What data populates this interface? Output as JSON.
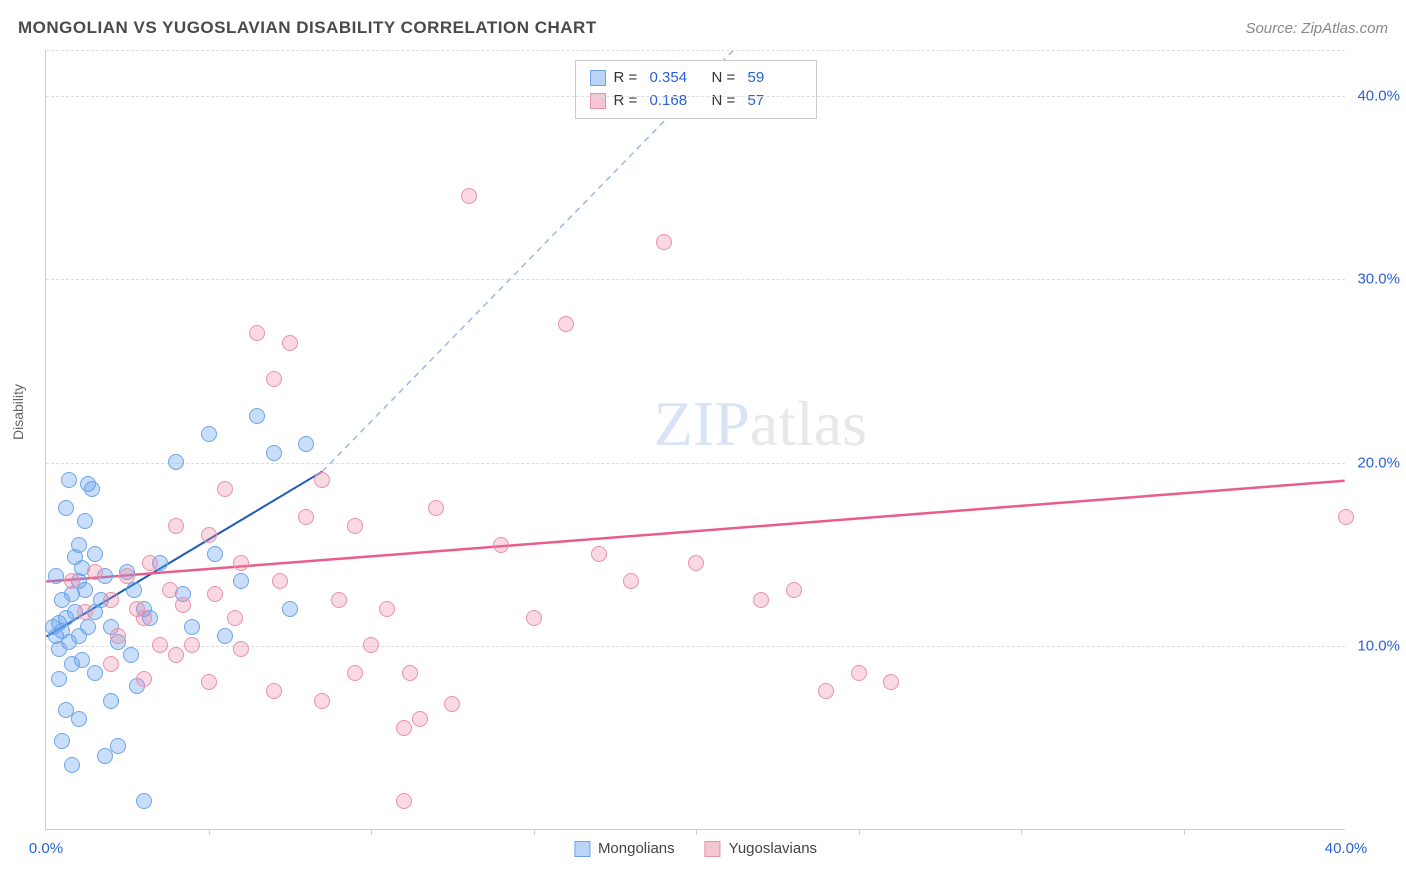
{
  "title": "MONGOLIAN VS YUGOSLAVIAN DISABILITY CORRELATION CHART",
  "source": "Source: ZipAtlas.com",
  "ylabel": "Disability",
  "watermark": {
    "zip": "ZIP",
    "atlas": "atlas"
  },
  "chart": {
    "type": "scatter",
    "xlim": [
      0,
      40
    ],
    "ylim": [
      0,
      42.5
    ],
    "ytick_labels": [
      "10.0%",
      "20.0%",
      "30.0%",
      "40.0%"
    ],
    "ytick_values": [
      10,
      20,
      30,
      40
    ],
    "xtick_labels": [
      "0.0%",
      "40.0%"
    ],
    "xtick_values": [
      0,
      40
    ],
    "xtick_minor": [
      5,
      10,
      15,
      20,
      25,
      30,
      35
    ],
    "background_color": "#ffffff",
    "grid_color": "#dddddd",
    "marker_radius": 8,
    "marker_stroke_width": 1.5,
    "series": [
      {
        "name": "Mongolians",
        "fill": "rgba(100,160,240,0.35)",
        "stroke": "#6da4e8",
        "swatch_fill": "#b9d4f4",
        "swatch_stroke": "#6da4e8",
        "points": [
          [
            0.2,
            11
          ],
          [
            0.3,
            10.5
          ],
          [
            0.4,
            11.2
          ],
          [
            0.5,
            10.8
          ],
          [
            0.5,
            12.5
          ],
          [
            0.6,
            11.5
          ],
          [
            0.7,
            10.2
          ],
          [
            0.8,
            12.8
          ],
          [
            0.9,
            11.8
          ],
          [
            1.0,
            15.5
          ],
          [
            1.0,
            13.5
          ],
          [
            1.1,
            14.2
          ],
          [
            1.2,
            16.8
          ],
          [
            1.3,
            11.0
          ],
          [
            1.4,
            18.5
          ],
          [
            1.5,
            15.0
          ],
          [
            0.3,
            13.8
          ],
          [
            0.4,
            9.8
          ],
          [
            0.6,
            17.5
          ],
          [
            0.7,
            19.0
          ],
          [
            0.8,
            9.0
          ],
          [
            0.9,
            14.8
          ],
          [
            1.0,
            10.5
          ],
          [
            1.2,
            13.0
          ],
          [
            1.3,
            18.8
          ],
          [
            1.5,
            11.8
          ],
          [
            1.7,
            12.5
          ],
          [
            1.8,
            13.8
          ],
          [
            2.0,
            11.0
          ],
          [
            2.2,
            10.2
          ],
          [
            2.5,
            14.0
          ],
          [
            2.6,
            9.5
          ],
          [
            2.7,
            13.0
          ],
          [
            3.0,
            12.0
          ],
          [
            3.2,
            11.5
          ],
          [
            3.5,
            14.5
          ],
          [
            4.0,
            20.0
          ],
          [
            4.2,
            12.8
          ],
          [
            4.5,
            11.0
          ],
          [
            5.0,
            21.5
          ],
          [
            5.2,
            15.0
          ],
          [
            5.5,
            10.5
          ],
          [
            6.0,
            13.5
          ],
          [
            6.5,
            22.5
          ],
          [
            7.0,
            20.5
          ],
          [
            7.5,
            12.0
          ],
          [
            8.0,
            21.0
          ],
          [
            2.0,
            7.0
          ],
          [
            1.8,
            4.0
          ],
          [
            2.2,
            4.5
          ],
          [
            0.5,
            4.8
          ],
          [
            0.8,
            3.5
          ],
          [
            1.0,
            6.0
          ],
          [
            1.5,
            8.5
          ],
          [
            3.0,
            1.5
          ],
          [
            2.8,
            7.8
          ],
          [
            0.4,
            8.2
          ],
          [
            0.6,
            6.5
          ],
          [
            1.1,
            9.2
          ]
        ],
        "trend": {
          "x1": 0,
          "y1": 10.5,
          "x2": 8.5,
          "y2": 19.5,
          "extend_x2": 22,
          "extend_y2": 44,
          "solid_color": "#1e5bb8",
          "dash_color": "#9bb8e6",
          "width": 2
        }
      },
      {
        "name": "Yugoslavians",
        "fill": "rgba(240,130,160,0.3)",
        "stroke": "#e891ab",
        "swatch_fill": "#f5c6d4",
        "swatch_stroke": "#e891ab",
        "points": [
          [
            0.8,
            13.5
          ],
          [
            1.2,
            11.8
          ],
          [
            1.5,
            14.0
          ],
          [
            2.0,
            12.5
          ],
          [
            2.2,
            10.5
          ],
          [
            2.5,
            13.8
          ],
          [
            2.8,
            12.0
          ],
          [
            3.0,
            11.5
          ],
          [
            3.2,
            14.5
          ],
          [
            3.5,
            10.0
          ],
          [
            3.8,
            13.0
          ],
          [
            4.0,
            16.5
          ],
          [
            4.2,
            12.2
          ],
          [
            4.5,
            10.0
          ],
          [
            5.0,
            16.0
          ],
          [
            5.2,
            12.8
          ],
          [
            5.5,
            18.5
          ],
          [
            5.8,
            11.5
          ],
          [
            6.0,
            14.5
          ],
          [
            6.5,
            27.0
          ],
          [
            7.0,
            24.5
          ],
          [
            7.2,
            13.5
          ],
          [
            7.5,
            26.5
          ],
          [
            8.0,
            17.0
          ],
          [
            8.5,
            19.0
          ],
          [
            9.0,
            12.5
          ],
          [
            9.5,
            16.5
          ],
          [
            10.0,
            10.0
          ],
          [
            10.5,
            12.0
          ],
          [
            11.0,
            1.5
          ],
          [
            11.2,
            8.5
          ],
          [
            11.5,
            6.0
          ],
          [
            12.0,
            17.5
          ],
          [
            13.0,
            34.5
          ],
          [
            14.0,
            15.5
          ],
          [
            15.0,
            11.5
          ],
          [
            16.0,
            27.5
          ],
          [
            17.0,
            15.0
          ],
          [
            18.0,
            13.5
          ],
          [
            19.0,
            32.0
          ],
          [
            20.0,
            14.5
          ],
          [
            22.0,
            12.5
          ],
          [
            23.0,
            13.0
          ],
          [
            24.0,
            7.5
          ],
          [
            25.0,
            8.5
          ],
          [
            26.0,
            8.0
          ],
          [
            2.0,
            9.0
          ],
          [
            3.0,
            8.2
          ],
          [
            4.0,
            9.5
          ],
          [
            5.0,
            8.0
          ],
          [
            6.0,
            9.8
          ],
          [
            7.0,
            7.5
          ],
          [
            8.5,
            7.0
          ],
          [
            9.5,
            8.5
          ],
          [
            11.0,
            5.5
          ],
          [
            12.5,
            6.8
          ],
          [
            40.0,
            17.0
          ]
        ],
        "trend": {
          "x1": 0,
          "y1": 13.5,
          "x2": 40,
          "y2": 19.0,
          "solid_color": "#e85d8a",
          "width": 2.5
        }
      }
    ]
  },
  "stats": [
    {
      "r_label": "R =",
      "r_value": "0.354",
      "n_label": "N =",
      "n_value": "59",
      "series_idx": 0
    },
    {
      "r_label": "R =",
      "r_value": "0.168",
      "n_label": "N =",
      "n_value": "57",
      "series_idx": 1
    }
  ],
  "bottom_legend": [
    {
      "label": "Mongolians",
      "series_idx": 0
    },
    {
      "label": "Yugoslavians",
      "series_idx": 1
    }
  ]
}
